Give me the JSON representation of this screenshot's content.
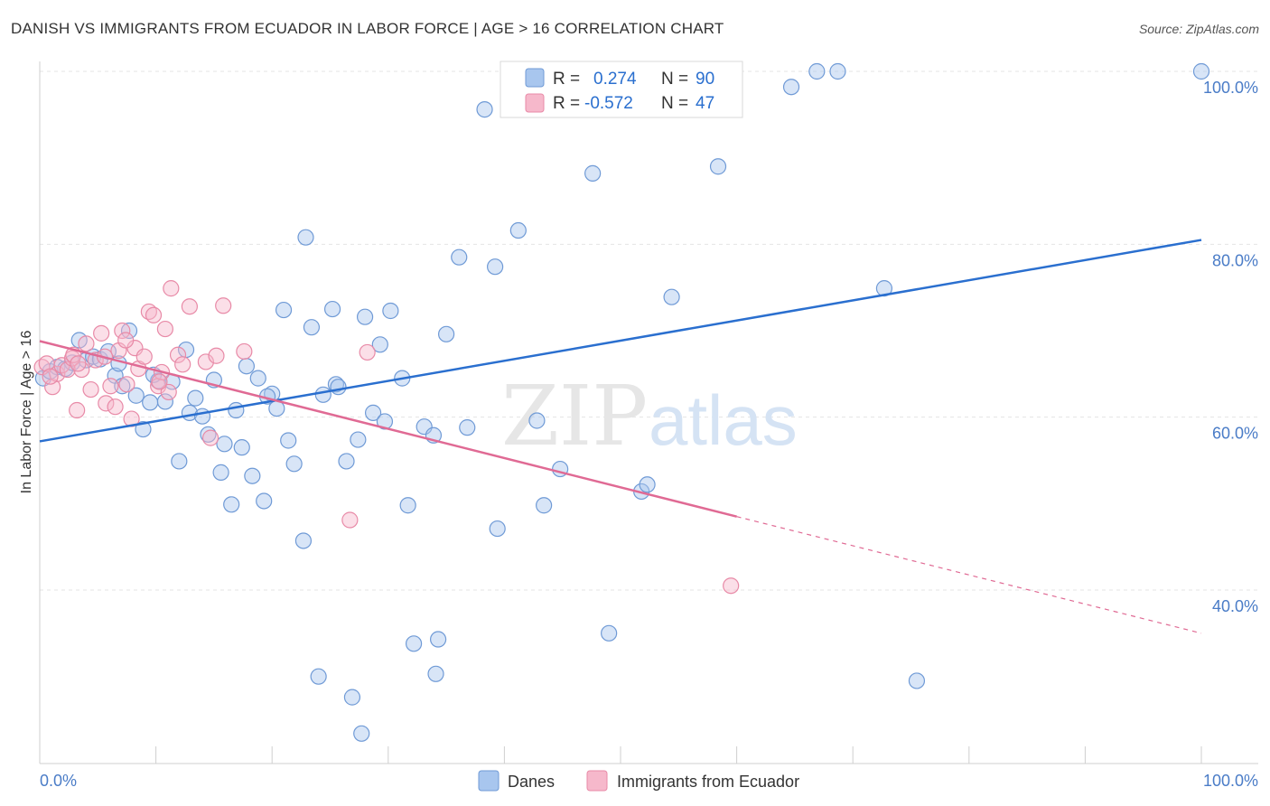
{
  "title": "DANISH VS IMMIGRANTS FROM ECUADOR IN LABOR FORCE | AGE > 16 CORRELATION CHART",
  "source": "Source: ZipAtlas.com",
  "watermark": {
    "zip": "ZIP",
    "atlas": "atlas"
  },
  "colors": {
    "danes": "#a8c6ee",
    "danes_stroke": "#6f9ad6",
    "danes_line": "#2a6fcf",
    "ecuador": "#f6b8cb",
    "ecuador_stroke": "#e88aa7",
    "ecuador_line": "#e06a94",
    "tick": "#4a7cc7"
  },
  "legend": {
    "rows": [
      {
        "r_label": "R =",
        "r_value": "0.274",
        "n_label": "N =",
        "n_value": "90"
      },
      {
        "r_label": "R =",
        "r_value": "-0.572",
        "n_label": "N =",
        "n_value": "47"
      }
    ]
  },
  "chart_data": {
    "type": "scatter",
    "title": "DANISH VS IMMIGRANTS FROM ECUADOR IN LABOR FORCE | AGE > 16 CORRELATION CHART",
    "xlabel": "",
    "ylabel": "In Labor Force | Age > 16",
    "xlim": [
      0,
      100
    ],
    "ylim": [
      20,
      102
    ],
    "x_tick_labels": [
      "0.0%",
      "100.0%"
    ],
    "y_ticks": [
      40,
      60,
      80,
      100
    ],
    "y_tick_labels": [
      "40.0%",
      "60.0%",
      "80.0%",
      "100.0%"
    ],
    "grid": true,
    "legend_position": "top-center",
    "series": [
      {
        "name": "Danes",
        "trend": {
          "x": [
            0,
            100
          ],
          "y": [
            57.2,
            80.5
          ]
        },
        "points": [
          [
            0.3,
            64.5
          ],
          [
            0.9,
            65.3
          ],
          [
            1.5,
            65.8
          ],
          [
            2.2,
            65.6
          ],
          [
            2.8,
            66.3
          ],
          [
            3.4,
            68.9
          ],
          [
            4.0,
            66.6
          ],
          [
            4.6,
            67.0
          ],
          [
            5.2,
            66.7
          ],
          [
            5.9,
            67.6
          ],
          [
            6.5,
            64.8
          ],
          [
            7.1,
            63.6
          ],
          [
            7.7,
            70.0
          ],
          [
            8.3,
            62.5
          ],
          [
            8.9,
            58.6
          ],
          [
            9.5,
            61.7
          ],
          [
            10.2,
            64.2
          ],
          [
            10.8,
            61.8
          ],
          [
            11.4,
            64.1
          ],
          [
            12.0,
            54.9
          ],
          [
            12.6,
            67.8
          ],
          [
            12.9,
            60.5
          ],
          [
            13.4,
            62.2
          ],
          [
            14.0,
            60.1
          ],
          [
            14.5,
            58.0
          ],
          [
            15.0,
            64.3
          ],
          [
            15.6,
            53.6
          ],
          [
            15.9,
            56.9
          ],
          [
            16.5,
            49.9
          ],
          [
            16.9,
            60.8
          ],
          [
            17.4,
            56.5
          ],
          [
            17.8,
            65.9
          ],
          [
            18.3,
            53.2
          ],
          [
            18.8,
            64.5
          ],
          [
            19.3,
            50.3
          ],
          [
            20.0,
            62.7
          ],
          [
            20.4,
            61.0
          ],
          [
            21.0,
            72.4
          ],
          [
            21.4,
            57.3
          ],
          [
            21.9,
            54.6
          ],
          [
            22.7,
            45.7
          ],
          [
            22.9,
            80.8
          ],
          [
            23.4,
            70.4
          ],
          [
            24.0,
            30.0
          ],
          [
            24.4,
            62.6
          ],
          [
            25.2,
            72.5
          ],
          [
            25.5,
            63.8
          ],
          [
            25.7,
            63.5
          ],
          [
            26.4,
            54.9
          ],
          [
            26.9,
            27.6
          ],
          [
            27.4,
            57.4
          ],
          [
            27.7,
            23.4
          ],
          [
            28.0,
            71.6
          ],
          [
            28.7,
            60.5
          ],
          [
            29.3,
            68.4
          ],
          [
            29.7,
            59.5
          ],
          [
            30.2,
            72.3
          ],
          [
            31.2,
            64.5
          ],
          [
            31.7,
            49.8
          ],
          [
            32.2,
            33.8
          ],
          [
            33.1,
            58.9
          ],
          [
            34.1,
            30.3
          ],
          [
            34.3,
            34.3
          ],
          [
            35.0,
            69.6
          ],
          [
            36.1,
            78.5
          ],
          [
            36.8,
            58.8
          ],
          [
            38.3,
            95.6
          ],
          [
            39.2,
            77.4
          ],
          [
            39.4,
            47.1
          ],
          [
            41.2,
            81.6
          ],
          [
            42.8,
            59.6
          ],
          [
            43.4,
            49.8
          ],
          [
            44.8,
            54.0
          ],
          [
            47.6,
            88.2
          ],
          [
            49.0,
            35.0
          ],
          [
            51.8,
            51.4
          ],
          [
            52.3,
            52.2
          ],
          [
            54.4,
            73.9
          ],
          [
            58.4,
            89.0
          ],
          [
            64.7,
            98.2
          ],
          [
            66.9,
            100.0
          ],
          [
            68.7,
            100.0
          ],
          [
            72.7,
            74.9
          ],
          [
            75.5,
            29.5
          ],
          [
            100.0,
            100.0
          ],
          [
            43.8,
            99.8
          ],
          [
            6.8,
            66.2
          ],
          [
            9.8,
            64.9
          ],
          [
            19.6,
            62.4
          ],
          [
            33.9,
            57.9
          ]
        ]
      },
      {
        "name": "Immigrants from Ecuador",
        "trend": {
          "x": [
            0,
            60
          ],
          "y": [
            68.8,
            48.5
          ]
        },
        "trend_dashed": {
          "x": [
            60,
            100
          ],
          "y": [
            48.5,
            35.0
          ]
        },
        "points": [
          [
            0.2,
            65.8
          ],
          [
            0.6,
            66.2
          ],
          [
            1.1,
            63.5
          ],
          [
            1.5,
            65.0
          ],
          [
            1.9,
            66.0
          ],
          [
            2.4,
            65.5
          ],
          [
            2.8,
            66.8
          ],
          [
            3.2,
            60.8
          ],
          [
            3.6,
            65.5
          ],
          [
            4.0,
            68.5
          ],
          [
            4.4,
            63.2
          ],
          [
            4.8,
            66.6
          ],
          [
            5.3,
            69.7
          ],
          [
            5.7,
            61.6
          ],
          [
            6.1,
            63.6
          ],
          [
            6.5,
            61.2
          ],
          [
            6.8,
            67.7
          ],
          [
            7.1,
            70.0
          ],
          [
            7.5,
            63.8
          ],
          [
            7.9,
            59.8
          ],
          [
            8.2,
            68.0
          ],
          [
            8.5,
            65.6
          ],
          [
            9.0,
            67.0
          ],
          [
            9.4,
            72.2
          ],
          [
            9.8,
            71.8
          ],
          [
            10.2,
            63.6
          ],
          [
            10.5,
            65.2
          ],
          [
            10.8,
            70.2
          ],
          [
            11.1,
            62.9
          ],
          [
            11.3,
            74.9
          ],
          [
            11.9,
            67.2
          ],
          [
            12.3,
            66.1
          ],
          [
            12.9,
            72.8
          ],
          [
            14.3,
            66.4
          ],
          [
            14.7,
            57.6
          ],
          [
            15.2,
            67.1
          ],
          [
            15.8,
            72.9
          ],
          [
            17.6,
            67.6
          ],
          [
            26.7,
            48.1
          ],
          [
            28.2,
            67.5
          ],
          [
            59.5,
            40.5
          ],
          [
            2.9,
            67.2
          ],
          [
            5.6,
            67.0
          ],
          [
            7.4,
            68.9
          ],
          [
            10.3,
            64.1
          ],
          [
            3.3,
            66.2
          ],
          [
            0.9,
            64.7
          ]
        ]
      }
    ]
  }
}
